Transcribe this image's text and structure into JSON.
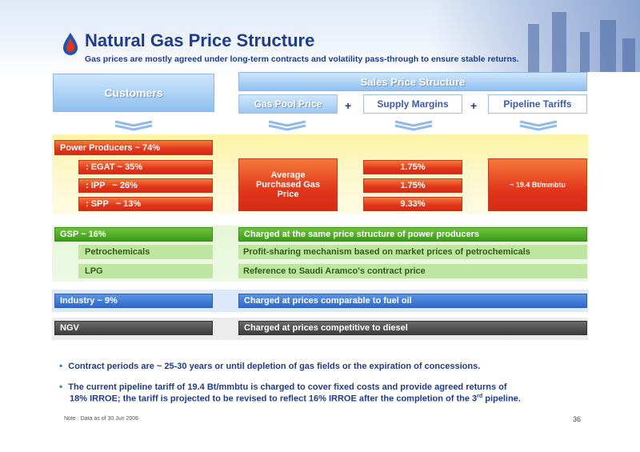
{
  "header": {
    "title": "Natural Gas Price Structure",
    "subtitle": "Gas prices are mostly agreed under long-term contracts and volatility pass-through to ensure stable returns."
  },
  "columns": {
    "customers": "Customers",
    "sales_price_structure": "Sales Price Structure",
    "gas_pool_price": "Gas Pool Price",
    "supply_margins": "Supply Margins",
    "pipeline_tariffs": "Pipeline Tariffs",
    "plus": "+"
  },
  "power": {
    "title": "Power Producers ~ 74%",
    "rows": [
      {
        "label": ": EGAT ~ 35%",
        "margin": "1.75%"
      },
      {
        "label": ": IPP   ~ 26%",
        "margin": "1.75%"
      },
      {
        "label": ": SPP   ~ 13%",
        "margin": "9.33%"
      }
    ],
    "avg_price": "Average Purchased Gas Price",
    "tariff": "~ 19.4 Bt/mmbtu"
  },
  "gsp": {
    "title": "GSP ~ 16%",
    "desc": "Charged at the same price structure of power producers",
    "rows": [
      {
        "label": "Petrochemicals",
        "desc": "Profit-sharing mechanism based on market prices of petrochemicals"
      },
      {
        "label": "LPG",
        "desc": "Reference to Saudi Aramco's contract price"
      }
    ]
  },
  "industry": {
    "title": "Industry ~ 9%",
    "desc": "Charged at prices comparable to fuel oil"
  },
  "ngv": {
    "title": "NGV",
    "desc": "Charged at prices competitive to diesel"
  },
  "bullets": {
    "b1": "Contract periods are ~ 25-30 years or until depletion of gas fields or the expiration of concessions.",
    "b2_line1": "The current pipeline tariff of 19.4 Bt/mmbtu is charged to cover fixed costs and provide agreed returns of",
    "b2_line2_pre": "18% IRROE; the tariff is projected to be revised to reflect 16% IRROE after the completion of the 3",
    "b2_sup": "rd",
    "b2_line2_post": " pipeline."
  },
  "footer": {
    "note": "Note : Data as of 30 Jun 2006",
    "page": "36"
  },
  "colors": {
    "title_blue": "#1f3c8c",
    "red": "#e2361b",
    "green": "#3a9b1a",
    "blue": "#2f69cc",
    "dark": "#3d3d3d"
  }
}
